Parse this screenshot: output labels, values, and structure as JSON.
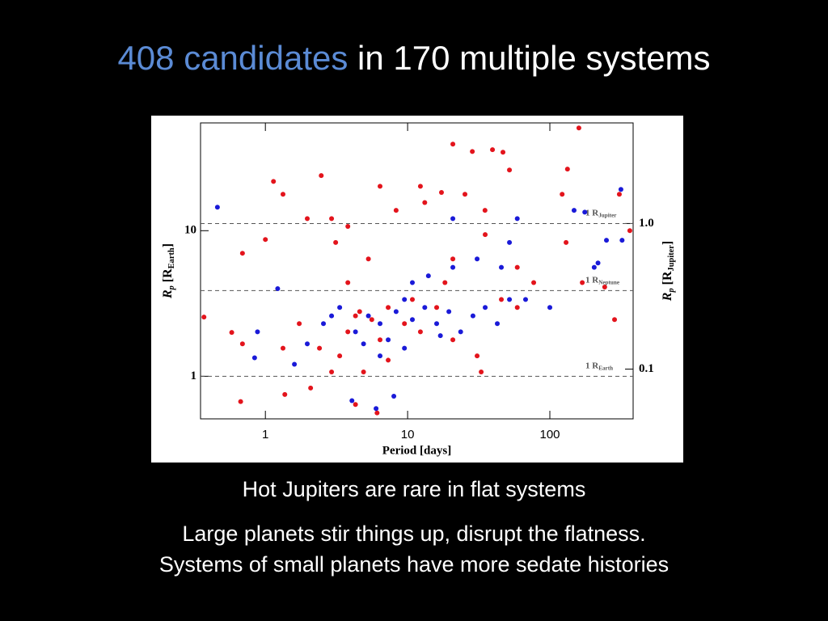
{
  "title": {
    "highlight": "408 candidates",
    "rest": " in 170 multiple systems"
  },
  "bullets": [
    "Hot Jupiters are rare in flat systems",
    "Large planets stir things up, disrupt the flatness.",
    "Systems of small planets have more sedate histories"
  ],
  "chart_data": {
    "type": "scatter",
    "xlabel": "Period [days]",
    "ylabel": [
      "R",
      "p",
      " [R",
      "Earth",
      "]"
    ],
    "y2label": [
      "R",
      "p",
      " [R",
      "Jupiter",
      "]"
    ],
    "xscale": "log",
    "yscale": "log",
    "xlim": [
      0.35,
      385
    ],
    "ylim": [
      0.51,
      55
    ],
    "y2lim": [
      0.0455,
      4.91
    ],
    "xticks": [
      1,
      10,
      100
    ],
    "yticks": [
      1,
      10
    ],
    "y2ticks": [
      {
        "value": 0.1,
        "label": "0.1"
      },
      {
        "value": 1,
        "label": "1.0"
      }
    ],
    "reference_lines": [
      {
        "value": 11.2,
        "label": [
          "1 R",
          "Jupiter"
        ]
      },
      {
        "value": 3.88,
        "label": [
          "1 R",
          "Neptune"
        ]
      },
      {
        "value": 1,
        "label": [
          "1 R",
          "Earth"
        ]
      }
    ],
    "series": [
      {
        "color": "#e3141c",
        "x": [
          160,
          20.8,
          39.5,
          46.8,
          28.5,
          1.14,
          2.47,
          52,
          133,
          308,
          122,
          0.69,
          0.67,
          0.37,
          0.58,
          0.69,
          1.0,
          1.37,
          2.08,
          1.33,
          1.97,
          3.12,
          3.8,
          4.3,
          6.4,
          6.1,
          8.3,
          13.2,
          17.3,
          25.3,
          35.1,
          59,
          77,
          130,
          169,
          243,
          285,
          365,
          9.5,
          12.3,
          16,
          20.8,
          30.8,
          32.9,
          7.3,
          4.9,
          3.33,
          2.4,
          2.92,
          1.73,
          1.33,
          10.8,
          7.3,
          5.6,
          3.8,
          18.3,
          45.6,
          59,
          5.3,
          3.8,
          2.92,
          20.8,
          35,
          12.3,
          6.4,
          4.3,
          4.6
        ],
        "y": [
          50.8,
          39.3,
          36,
          34.6,
          35,
          21.8,
          23.9,
          26.1,
          26.5,
          17.8,
          17.8,
          1.67,
          0.67,
          2.55,
          2.0,
          7.0,
          8.7,
          0.75,
          0.83,
          17.8,
          12.1,
          8.3,
          4.4,
          2.6,
          1.78,
          0.56,
          13.8,
          15.6,
          18.3,
          17.8,
          9.4,
          5.6,
          4.4,
          8.3,
          4.4,
          4.1,
          2.45,
          10.0,
          2.3,
          2.02,
          2.97,
          1.78,
          1.38,
          1.07,
          1.29,
          1.07,
          1.38,
          1.56,
          1.07,
          2.3,
          1.56,
          3.37,
          2.97,
          2.45,
          2.02,
          4.4,
          3.37,
          2.97,
          6.4,
          10.7,
          12.1,
          6.4,
          13.8,
          20.2,
          20.2,
          0.64,
          2.78
        ]
      },
      {
        "color": "#1a1ad8",
        "x": [
          0.46,
          316,
          148,
          176,
          322,
          250,
          52,
          218,
          1.22,
          0.88,
          0.84,
          1.6,
          4.06,
          6.0,
          8.0,
          1.97,
          2.56,
          3.33,
          4.3,
          5.3,
          6.4,
          8.3,
          9.5,
          10.8,
          13.2,
          16,
          19.5,
          23.6,
          28.8,
          35.1,
          42.7,
          52,
          14,
          10.8,
          20.8,
          30.8,
          45.6,
          67.5,
          100,
          6.4,
          9.5,
          7.3,
          4.9,
          2.92,
          59,
          20.8,
          205,
          17
        ],
        "y": [
          14.5,
          19.2,
          13.8,
          13.4,
          8.6,
          8.6,
          8.3,
          6.0,
          4.0,
          2.02,
          1.34,
          1.21,
          0.68,
          0.6,
          0.73,
          1.67,
          2.3,
          2.97,
          2.02,
          2.6,
          2.3,
          2.78,
          3.37,
          2.45,
          2.97,
          2.3,
          2.78,
          2.02,
          2.6,
          2.97,
          2.3,
          3.37,
          4.9,
          4.4,
          5.6,
          6.4,
          5.6,
          3.37,
          2.97,
          1.38,
          1.56,
          1.78,
          1.67,
          2.6,
          12.1,
          12.1,
          5.6,
          1.9
        ]
      }
    ]
  }
}
